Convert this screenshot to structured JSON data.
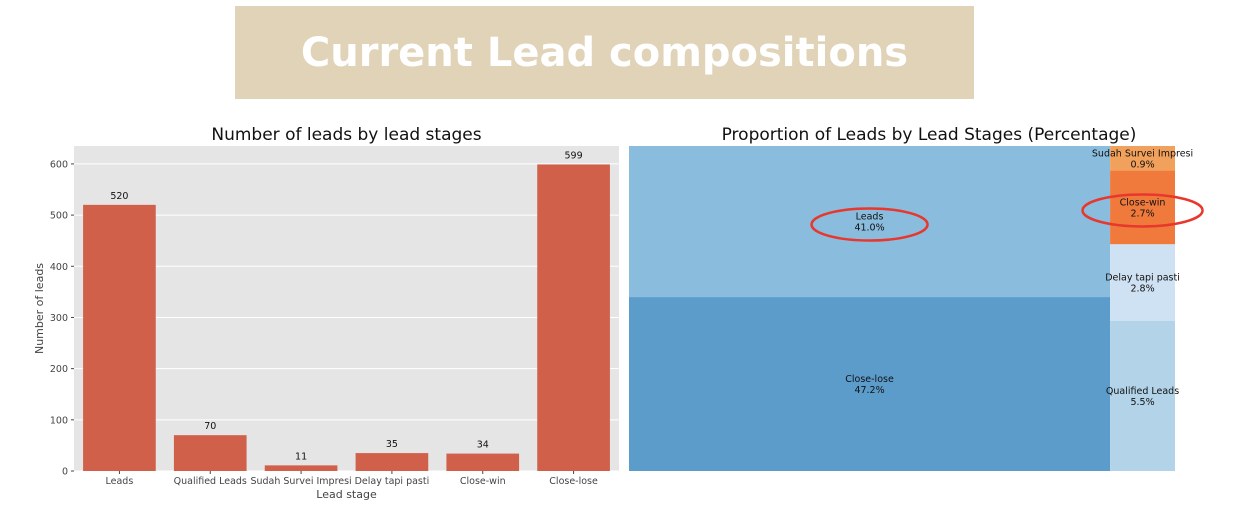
{
  "banner": {
    "title": "Current Lead compositions"
  },
  "chart_data": [
    {
      "type": "bar",
      "title": "Number of leads by lead stages",
      "xlabel": "Lead stage",
      "ylabel": "Number of leads",
      "categories": [
        "Leads",
        "Qualified Leads",
        "Sudah Survei Impresi",
        "Delay tapi pasti",
        "Close-win",
        "Close-lose"
      ],
      "values": [
        520,
        70,
        11,
        35,
        34,
        599
      ],
      "ylim": [
        0,
        635
      ],
      "yticks": [
        0,
        100,
        200,
        300,
        400,
        500,
        600
      ],
      "bar_color": "#d0604a",
      "grid": true
    },
    {
      "type": "treemap",
      "title": "Proportion of Leads by Lead Stages (Percentage)",
      "items": [
        {
          "label": "Leads",
          "value_label": "41.0%",
          "value": 41.0,
          "color": "#8abcdd"
        },
        {
          "label": "Close-lose",
          "value_label": "47.2%",
          "value": 47.2,
          "color": "#5c9ccb"
        },
        {
          "label": "Sudah Survei Impresi",
          "value_label": "0.9%",
          "value": 0.9,
          "color": "#f2a15c"
        },
        {
          "label": "Close-win",
          "value_label": "2.7%",
          "value": 2.7,
          "color": "#f07a3c"
        },
        {
          "label": "Delay tapi pasti",
          "value_label": "2.8%",
          "value": 2.8,
          "color": "#cfe2f3"
        },
        {
          "label": "Qualified Leads",
          "value_label": "5.5%",
          "value": 5.5,
          "color": "#b3d3e8"
        }
      ],
      "highlighted": [
        "Leads",
        "Close-win"
      ],
      "highlight_color": "#e8372c"
    }
  ]
}
